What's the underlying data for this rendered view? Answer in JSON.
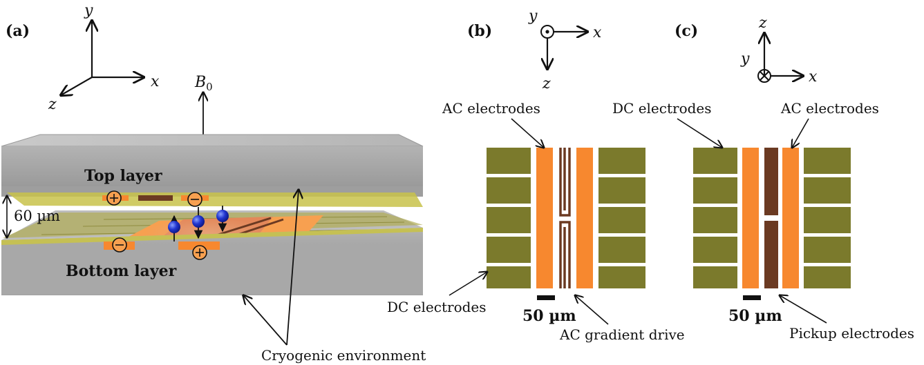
{
  "panels": {
    "a": {
      "label": "(a)",
      "axes": {
        "x": "x",
        "y": "y",
        "z": "z"
      },
      "field_label_main": "B",
      "field_label_sub": "0",
      "top_layer": "Top layer",
      "bottom_layer": "Bottom layer",
      "gap": "60 µm",
      "environment": "Cryogenic environment",
      "plus_sign": "+",
      "minus_sign": "−"
    },
    "b": {
      "label": "(b)",
      "axes": {
        "x": "x",
        "y": "y",
        "z": "z"
      },
      "ac_electrodes": "AC electrodes",
      "dc_electrodes": "DC electrodes",
      "ac_gradient_drive": "AC gradient drive",
      "scale": "50 µm"
    },
    "c": {
      "label": "(c)",
      "axes": {
        "x": "x",
        "y": "y",
        "z": "z"
      },
      "dc_electrodes": "DC electrodes",
      "ac_electrodes": "AC electrodes",
      "pickup_electrodes": "Pickup electrodes",
      "scale": "50 µm"
    }
  },
  "colors": {
    "dc_electrode": "#7b7a2c",
    "ac_electrode": "#f7882f",
    "pickup": "#6b3a22",
    "substrate": "#a9a9a9",
    "particle": "#1f2fbf"
  }
}
